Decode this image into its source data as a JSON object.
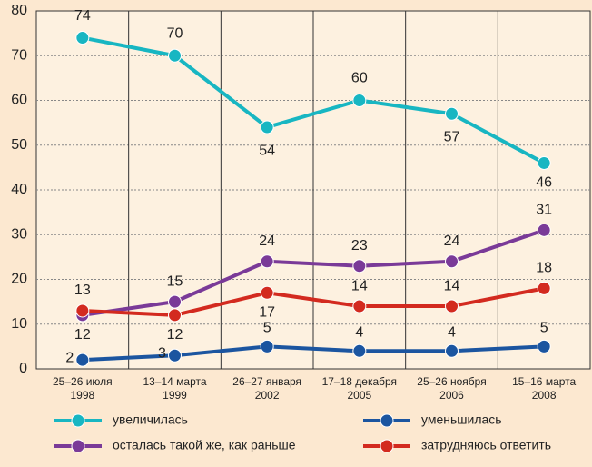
{
  "chart_data": {
    "type": "line",
    "categories": [
      "25–26 июля\n1998",
      "13–14 марта\n1999",
      "26–27 января\n2002",
      "17–18 декабря\n2005",
      "25–26 ноября\n2006",
      "15–16 марта\n2008"
    ],
    "series": [
      {
        "name": "увеличилась",
        "color": "#18b6c2",
        "values": [
          74,
          70,
          54,
          60,
          57,
          46
        ]
      },
      {
        "name": "уменьшилась",
        "color": "#1b55a0",
        "values": [
          2,
          3,
          5,
          4,
          4,
          5
        ]
      },
      {
        "name": "осталась такой же, как раньше",
        "color": "#7a3a98",
        "values": [
          12,
          15,
          24,
          23,
          24,
          31
        ]
      },
      {
        "name": "затрудняюсь ответить",
        "color": "#d32a1f",
        "values": [
          13,
          12,
          17,
          14,
          14,
          18
        ]
      }
    ],
    "ylim": [
      0,
      80
    ],
    "yticks": [
      0,
      10,
      20,
      30,
      40,
      50,
      60,
      70,
      80
    ],
    "grid": true
  }
}
